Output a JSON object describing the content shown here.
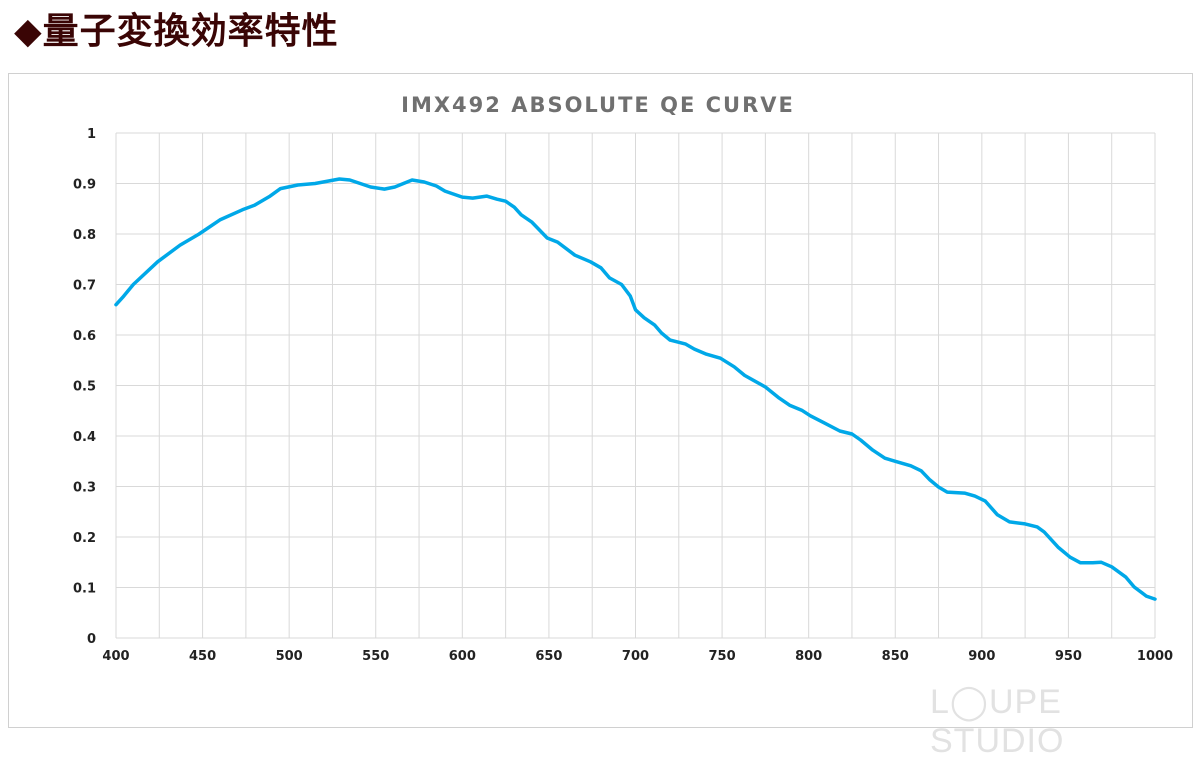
{
  "page": {
    "heading": "◆量子変換効率特性",
    "watermark": "LOUPE STUDIO"
  },
  "chart_data": {
    "type": "line",
    "title": "IMX492 ABSOLUTE QE CURVE",
    "xlabel": "",
    "ylabel": "",
    "xlim": [
      400,
      1000
    ],
    "ylim": [
      0,
      1
    ],
    "xticks": [
      400,
      450,
      500,
      550,
      600,
      650,
      700,
      750,
      800,
      850,
      900,
      950,
      1000
    ],
    "yticks": [
      0,
      0.1,
      0.2,
      0.3,
      0.4,
      0.5,
      0.6,
      0.7,
      0.8,
      0.9,
      1
    ],
    "ytick_labels": [
      "0",
      "0.1",
      "0.2",
      "0.3",
      "0.4",
      "0.5",
      "0.6",
      "0.7",
      "0.8",
      "0.9",
      "1"
    ],
    "grid": true,
    "x_grid_step": 25,
    "legend": "none",
    "line_color": "#00a8e8",
    "series": [
      {
        "x": [
          400,
          404,
          410,
          424,
          437,
          448,
          460,
          473,
          480,
          489,
          495,
          505,
          515,
          529,
          535,
          547,
          555,
          561,
          571,
          578,
          585,
          590,
          600,
          606,
          614,
          620,
          625,
          630,
          634,
          640,
          649,
          655,
          665,
          674,
          680,
          685,
          692,
          697,
          700,
          705,
          711,
          715,
          720,
          729,
          734,
          741,
          749,
          757,
          763,
          775,
          783,
          789,
          796,
          801,
          809,
          818,
          825,
          830,
          837,
          844,
          851,
          859,
          865,
          870,
          875,
          880,
          890,
          896,
          902,
          909,
          916,
          925,
          932,
          936,
          944,
          951,
          957,
          964,
          969,
          975,
          983,
          988,
          995,
          1000
        ],
        "y": [
          0.66,
          0.675,
          0.7,
          0.745,
          0.778,
          0.8,
          0.828,
          0.848,
          0.857,
          0.875,
          0.89,
          0.897,
          0.9,
          0.909,
          0.907,
          0.893,
          0.889,
          0.893,
          0.907,
          0.903,
          0.895,
          0.885,
          0.873,
          0.871,
          0.875,
          0.869,
          0.865,
          0.853,
          0.838,
          0.824,
          0.792,
          0.784,
          0.758,
          0.745,
          0.733,
          0.713,
          0.7,
          0.677,
          0.65,
          0.634,
          0.62,
          0.604,
          0.59,
          0.582,
          0.572,
          0.562,
          0.554,
          0.537,
          0.52,
          0.497,
          0.475,
          0.461,
          0.451,
          0.44,
          0.426,
          0.41,
          0.404,
          0.392,
          0.372,
          0.356,
          0.349,
          0.341,
          0.331,
          0.313,
          0.299,
          0.289,
          0.287,
          0.281,
          0.271,
          0.244,
          0.23,
          0.226,
          0.22,
          0.21,
          0.18,
          0.16,
          0.149,
          0.149,
          0.15,
          0.141,
          0.121,
          0.101,
          0.083,
          0.077
        ]
      }
    ]
  }
}
